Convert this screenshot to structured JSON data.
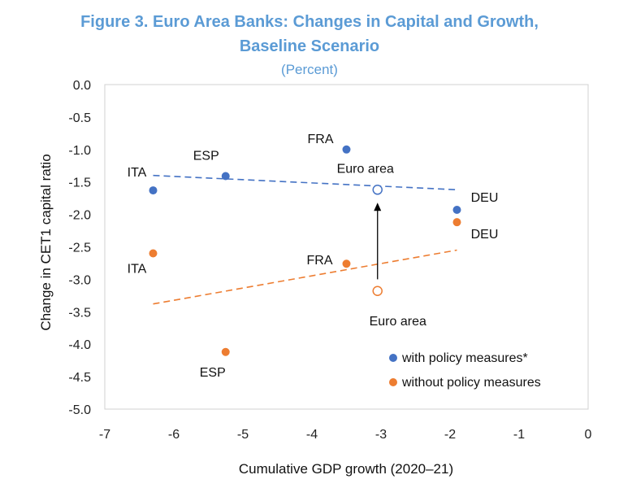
{
  "chart_data": {
    "type": "scatter",
    "title_line1": "Figure 3. Euro Area Banks: Changes in Capital and Growth,",
    "title_line2": "Baseline Scenario",
    "subtitle": "(Percent)",
    "xlabel": "Cumulative GDP growth (2020–21)",
    "ylabel": "Change in CET1 capital ratio",
    "xlim": [
      -7,
      0
    ],
    "ylim": [
      -5,
      0
    ],
    "xticks": [
      -7,
      -6,
      -5,
      -4,
      -3,
      -2,
      -1,
      0
    ],
    "yticks": [
      0,
      -0.5,
      -1,
      -1.5,
      -2,
      -2.5,
      -3,
      -3.5,
      -4,
      -4.5,
      -5
    ],
    "ytick_labels": [
      "0.0",
      "-0.5",
      "-1.0",
      "-1.5",
      "-2.0",
      "-2.5",
      "-3.0",
      "-3.5",
      "-4.0",
      "-4.5",
      "-5.0"
    ],
    "colors": {
      "with": "#4472c4",
      "without": "#ed7d31",
      "title": "#5b9bd5"
    },
    "series": [
      {
        "name": "with policy measures*",
        "key": "with",
        "points": [
          {
            "label": "ITA",
            "x": -6.3,
            "y": -1.63
          },
          {
            "label": "ESP",
            "x": -5.25,
            "y": -1.41
          },
          {
            "label": "FRA",
            "x": -3.5,
            "y": -1.0
          },
          {
            "label": "DEU",
            "x": -1.9,
            "y": -1.93
          },
          {
            "label": "Euro area",
            "x": -3.05,
            "y": -1.62,
            "hollow": true
          }
        ],
        "trend": {
          "x": [
            -6.3,
            -1.9
          ],
          "y": [
            -1.4,
            -1.62
          ]
        }
      },
      {
        "name": "without policy measures",
        "key": "without",
        "points": [
          {
            "label": "ITA",
            "x": -6.3,
            "y": -2.6
          },
          {
            "label": "ESP",
            "x": -5.25,
            "y": -4.12
          },
          {
            "label": "FRA",
            "x": -3.5,
            "y": -2.76
          },
          {
            "label": "DEU",
            "x": -1.9,
            "y": -2.12
          },
          {
            "label": "Euro area",
            "x": -3.05,
            "y": -3.18,
            "hollow": true
          }
        ],
        "trend": {
          "x": [
            -6.3,
            -1.9
          ],
          "y": [
            -3.38,
            -2.55
          ]
        }
      }
    ],
    "arrow": {
      "x": -3.05,
      "from_y": -3.0,
      "to_y": -1.82
    },
    "legend": [
      "with policy measures*",
      "without policy measures"
    ],
    "legend_position": "bottom-right"
  }
}
